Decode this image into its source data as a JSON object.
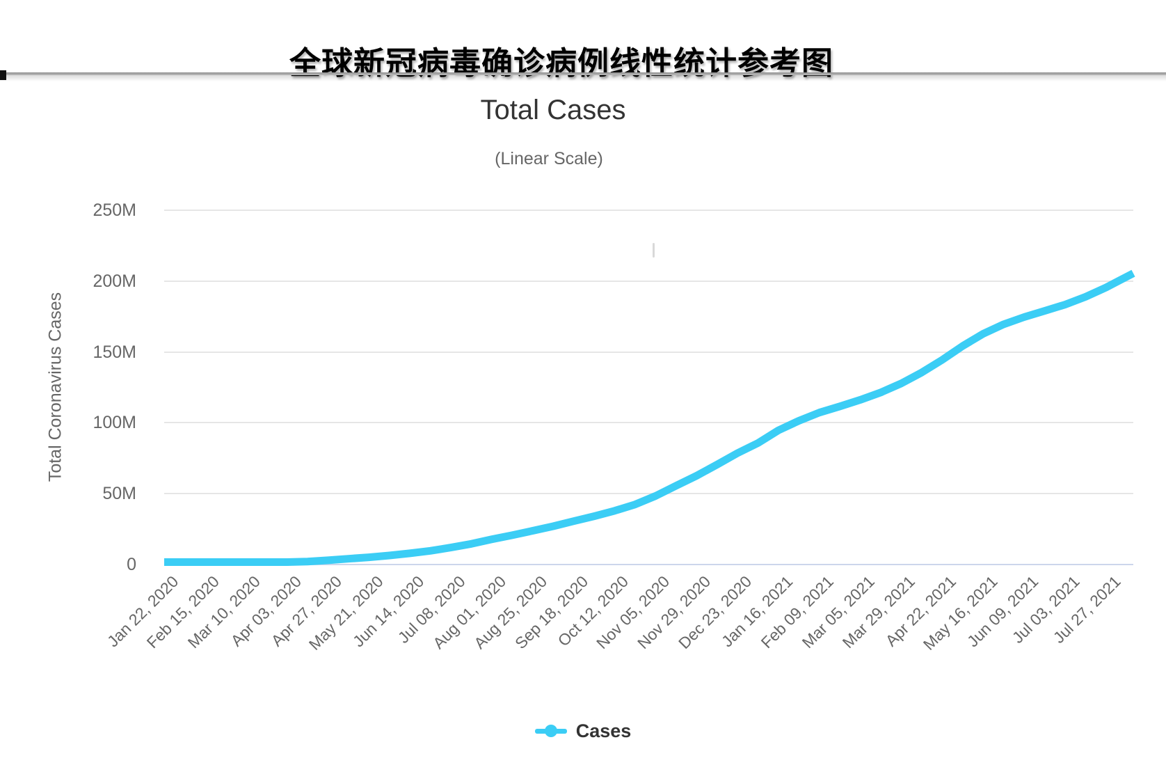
{
  "page": {
    "title": "全球新冠病毒确诊病例线性统计参考图"
  },
  "chart": {
    "title": "Total Cases",
    "subtitle": "(Linear Scale)",
    "y_axis_title": "Total Coronavirus Cases",
    "legend_label": "Cases",
    "colors": {
      "line": "#3bcdf5",
      "grid": "#e6e6e6",
      "axis_line": "#ccd6eb",
      "tick_text": "#666666",
      "title_text": "#333333",
      "subtitle_text": "#666666"
    }
  },
  "chart_data": {
    "type": "line",
    "title": "Total Cases",
    "subtitle": "(Linear Scale)",
    "xlabel": "",
    "ylabel": "Total Coronavirus Cases",
    "units": "million cases",
    "ylim_million": [
      0,
      250
    ],
    "y_tick_labels": [
      "0",
      "50M",
      "100M",
      "150M",
      "200M",
      "250M"
    ],
    "grid": true,
    "legend_position": "bottom",
    "categories": [
      "Jan 22, 2020",
      "Feb 15, 2020",
      "Mar 10, 2020",
      "Apr 03, 2020",
      "Apr 27, 2020",
      "May 21, 2020",
      "Jun 14, 2020",
      "Jul 08, 2020",
      "Aug 01, 2020",
      "Aug 25, 2020",
      "Sep 18, 2020",
      "Oct 12, 2020",
      "Nov 05, 2020",
      "Nov 29, 2020",
      "Dec 23, 2020",
      "Jan 16, 2021",
      "Feb 09, 2021",
      "Mar 05, 2021",
      "Mar 29, 2021",
      "Apr 22, 2021",
      "May 16, 2021",
      "Jun 09, 2021",
      "Jul 03, 2021",
      "Jul 27, 2021"
    ],
    "series": [
      {
        "name": "Cases",
        "values_million_at_categories": [
          0.0,
          0.07,
          0.12,
          1.1,
          3.0,
          5.1,
          7.9,
          12.0,
          17.8,
          23.8,
          30.6,
          37.9,
          48.4,
          62.6,
          78.6,
          94.7,
          107.2,
          116.2,
          127.8,
          144.4,
          162.8,
          174.6,
          183.4,
          195.5
        ]
      }
    ],
    "curve_points": {
      "note": "dense samples of the plotted cumulative-cases curve; day = days after Jan 22, 2020",
      "days": [
        0,
        12,
        24,
        36,
        48,
        60,
        72,
        84,
        96,
        108,
        120,
        132,
        144,
        156,
        168,
        180,
        192,
        204,
        216,
        228,
        240,
        252,
        264,
        276,
        288,
        300,
        312,
        324,
        336,
        348,
        360,
        372,
        384,
        396,
        408,
        420,
        432,
        444,
        456,
        468,
        480,
        492,
        504,
        516,
        528,
        540,
        552,
        560,
        568
      ],
      "values_million": [
        0.0,
        0.02,
        0.07,
        0.08,
        0.12,
        0.34,
        1.1,
        2.1,
        3.0,
        4.1,
        5.1,
        6.4,
        7.9,
        9.7,
        12.0,
        14.6,
        17.8,
        20.7,
        23.8,
        27.0,
        30.6,
        34.1,
        37.9,
        42.4,
        48.4,
        55.6,
        62.6,
        70.5,
        78.6,
        85.7,
        94.7,
        101.4,
        107.2,
        111.6,
        116.2,
        121.4,
        127.8,
        135.5,
        144.4,
        154.2,
        162.8,
        169.5,
        174.6,
        179.0,
        183.4,
        188.9,
        195.5,
        200.5,
        205.5
      ]
    }
  }
}
